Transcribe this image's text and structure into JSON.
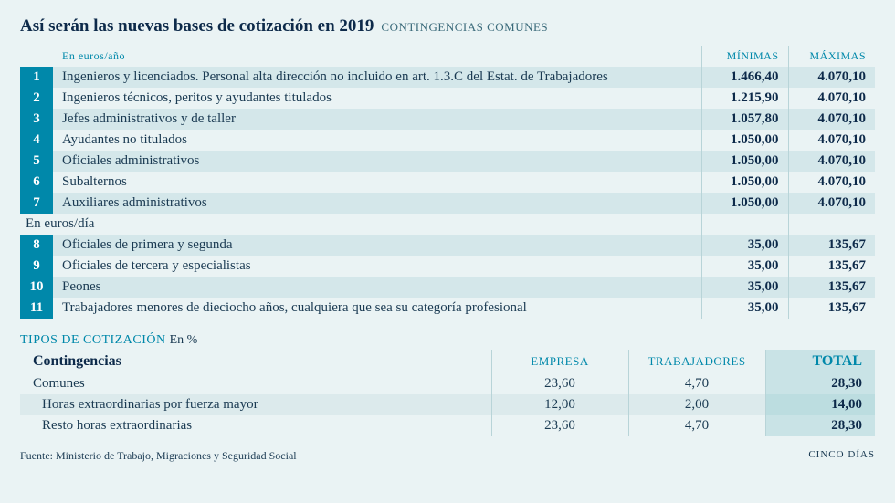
{
  "colors": {
    "page_bg": "#eaf3f4",
    "row_odd_bg": "#d4e7ea",
    "row_even_bg": "#eaf3f4",
    "accent": "#0088aa",
    "text_dark": "#0d2a4a",
    "text_body": "#1a3a52",
    "total_bg": "#c9e3e6",
    "border": "#b8d4d8"
  },
  "title": "Así serán las nuevas bases de cotización en 2019",
  "subtitle": "CONTINGENCIAS COMUNES",
  "section1_label": "En euros/año",
  "section2_label": "En euros/día",
  "col_min": "MÍNIMAS",
  "col_max": "MÁXIMAS",
  "rows_year": [
    {
      "n": "1",
      "desc": "Ingenieros y licenciados. Personal alta dirección no incluido en art. 1.3.C  del Estat. de Trabajadores",
      "min": "1.466,40",
      "max": "4.070,10"
    },
    {
      "n": "2",
      "desc": "Ingenieros técnicos, peritos y ayudantes titulados",
      "min": "1.215,90",
      "max": "4.070,10"
    },
    {
      "n": "3",
      "desc": "Jefes administrativos y de taller",
      "min": "1.057,80",
      "max": "4.070,10"
    },
    {
      "n": "4",
      "desc": "Ayudantes no titulados",
      "min": "1.050,00",
      "max": "4.070,10"
    },
    {
      "n": "5",
      "desc": "Oficiales administrativos",
      "min": "1.050,00",
      "max": "4.070,10"
    },
    {
      "n": "6",
      "desc": "Subalternos",
      "min": "1.050,00",
      "max": "4.070,10"
    },
    {
      "n": "7",
      "desc": "Auxiliares administrativos",
      "min": "1.050,00",
      "max": "4.070,10"
    }
  ],
  "rows_day": [
    {
      "n": "8",
      "desc": "Oficiales de primera y segunda",
      "min": "35,00",
      "max": "135,67"
    },
    {
      "n": "9",
      "desc": "Oficiales de tercera y especialistas",
      "min": "35,00",
      "max": "135,67"
    },
    {
      "n": "10",
      "desc": "Peones",
      "min": "35,00",
      "max": "135,67"
    },
    {
      "n": "11",
      "desc": "Trabajadores menores de dieciocho años, cualquiera que sea su categoría profesional",
      "min": "35,00",
      "max": "135,67"
    }
  ],
  "tipos": {
    "title": "TIPOS DE COTIZACIÓN",
    "unit": "En %",
    "header_cont": "Contingencias",
    "header_emp": "EMPRESA",
    "header_trab": "TRABAJADORES",
    "header_total": "TOTAL",
    "rows": [
      {
        "desc": "Comunes",
        "emp": "23,60",
        "trab": "4,70",
        "total": "28,30",
        "indent": false
      },
      {
        "desc": "Horas extraordinarias por fuerza mayor",
        "emp": "12,00",
        "trab": "2,00",
        "total": "14,00",
        "indent": true
      },
      {
        "desc": "Resto horas extraordinarias",
        "emp": "23,60",
        "trab": "4,70",
        "total": "28,30",
        "indent": true
      }
    ]
  },
  "footer_source": "Fuente: Ministerio de Trabajo, Migraciones y Seguridad Social",
  "footer_brand": "CINCO DÍAS"
}
